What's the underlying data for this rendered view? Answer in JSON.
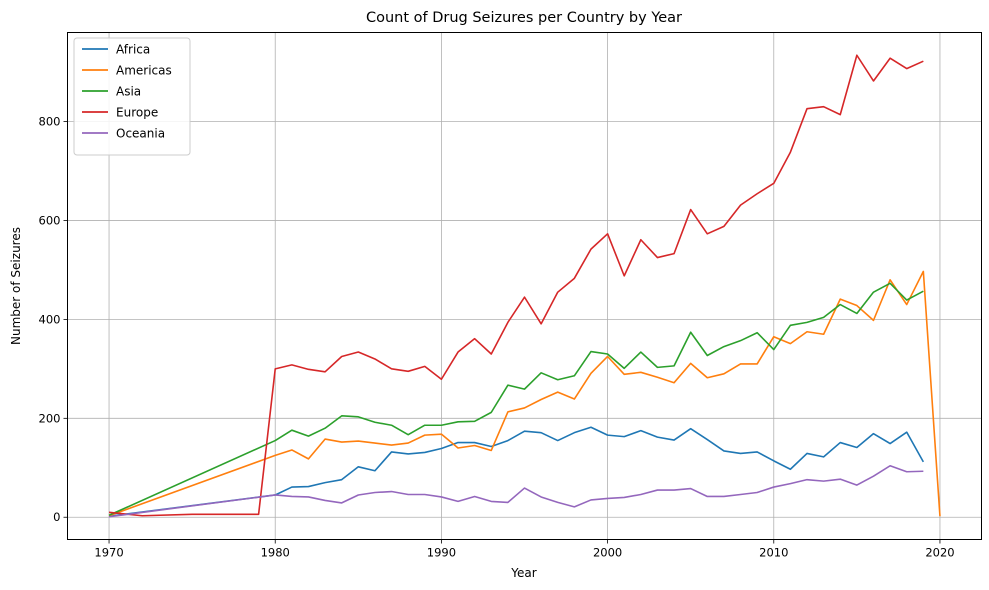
{
  "chart_data": {
    "type": "line",
    "title": "Count of Drug Seizures per Country by Year",
    "xlabel": "Year",
    "ylabel": "Number of Seizures",
    "xlim": [
      1967.5,
      2022.5
    ],
    "ylim": [
      -45,
      980
    ],
    "xticks": [
      1970,
      1980,
      1990,
      2000,
      2010,
      2020
    ],
    "yticks": [
      0,
      200,
      400,
      600,
      800
    ],
    "grid": true,
    "legend_position": "top-left",
    "series": [
      {
        "name": "Africa",
        "color": "#1f77b4",
        "points": [
          [
            1970,
            2
          ],
          [
            1980,
            45
          ],
          [
            1981,
            61
          ],
          [
            1982,
            62
          ],
          [
            1983,
            70
          ],
          [
            1984,
            76
          ],
          [
            1985,
            102
          ],
          [
            1986,
            94
          ],
          [
            1987,
            132
          ],
          [
            1988,
            128
          ],
          [
            1989,
            131
          ],
          [
            1990,
            139
          ],
          [
            1991,
            151
          ],
          [
            1992,
            151
          ],
          [
            1993,
            143
          ],
          [
            1994,
            155
          ],
          [
            1995,
            174
          ],
          [
            1996,
            171
          ],
          [
            1997,
            155
          ],
          [
            1998,
            171
          ],
          [
            1999,
            182
          ],
          [
            2000,
            166
          ],
          [
            2001,
            163
          ],
          [
            2002,
            175
          ],
          [
            2003,
            162
          ],
          [
            2004,
            156
          ],
          [
            2005,
            179
          ],
          [
            2006,
            157
          ],
          [
            2007,
            134
          ],
          [
            2008,
            129
          ],
          [
            2009,
            132
          ],
          [
            2010,
            114
          ],
          [
            2011,
            97
          ],
          [
            2012,
            129
          ],
          [
            2013,
            122
          ],
          [
            2014,
            151
          ],
          [
            2015,
            141
          ],
          [
            2016,
            169
          ],
          [
            2017,
            149
          ],
          [
            2018,
            172
          ],
          [
            2019,
            112
          ]
        ]
      },
      {
        "name": "Americas",
        "color": "#ff7f0e",
        "points": [
          [
            1970,
            3
          ],
          [
            1980,
            125
          ],
          [
            1981,
            136
          ],
          [
            1982,
            118
          ],
          [
            1983,
            158
          ],
          [
            1984,
            152
          ],
          [
            1985,
            154
          ],
          [
            1986,
            150
          ],
          [
            1987,
            146
          ],
          [
            1988,
            150
          ],
          [
            1989,
            166
          ],
          [
            1990,
            168
          ],
          [
            1991,
            140
          ],
          [
            1992,
            145
          ],
          [
            1993,
            135
          ],
          [
            1994,
            213
          ],
          [
            1995,
            221
          ],
          [
            1996,
            238
          ],
          [
            1997,
            253
          ],
          [
            1998,
            239
          ],
          [
            1999,
            291
          ],
          [
            2000,
            325
          ],
          [
            2001,
            289
          ],
          [
            2002,
            293
          ],
          [
            2003,
            283
          ],
          [
            2004,
            272
          ],
          [
            2005,
            311
          ],
          [
            2006,
            282
          ],
          [
            2007,
            290
          ],
          [
            2008,
            310
          ],
          [
            2009,
            310
          ],
          [
            2010,
            365
          ],
          [
            2011,
            351
          ],
          [
            2012,
            375
          ],
          [
            2013,
            370
          ],
          [
            2014,
            441
          ],
          [
            2015,
            428
          ],
          [
            2016,
            398
          ],
          [
            2017,
            480
          ],
          [
            2018,
            430
          ],
          [
            2019,
            497
          ],
          [
            2020,
            2
          ]
        ]
      },
      {
        "name": "Asia",
        "color": "#2ca02c",
        "points": [
          [
            1970,
            4
          ],
          [
            1980,
            155
          ],
          [
            1981,
            176
          ],
          [
            1982,
            164
          ],
          [
            1983,
            180
          ],
          [
            1984,
            205
          ],
          [
            1985,
            203
          ],
          [
            1986,
            192
          ],
          [
            1987,
            186
          ],
          [
            1988,
            167
          ],
          [
            1989,
            186
          ],
          [
            1990,
            186
          ],
          [
            1991,
            193
          ],
          [
            1992,
            194
          ],
          [
            1993,
            212
          ],
          [
            1994,
            267
          ],
          [
            1995,
            259
          ],
          [
            1996,
            292
          ],
          [
            1997,
            278
          ],
          [
            1998,
            286
          ],
          [
            1999,
            335
          ],
          [
            2000,
            330
          ],
          [
            2001,
            301
          ],
          [
            2002,
            334
          ],
          [
            2003,
            303
          ],
          [
            2004,
            306
          ],
          [
            2005,
            374
          ],
          [
            2006,
            327
          ],
          [
            2007,
            345
          ],
          [
            2008,
            357
          ],
          [
            2009,
            373
          ],
          [
            2010,
            339
          ],
          [
            2011,
            388
          ],
          [
            2012,
            394
          ],
          [
            2013,
            404
          ],
          [
            2014,
            430
          ],
          [
            2015,
            412
          ],
          [
            2016,
            455
          ],
          [
            2017,
            473
          ],
          [
            2018,
            439
          ],
          [
            2019,
            457
          ]
        ]
      },
      {
        "name": "Europe",
        "color": "#d62728",
        "points": [
          [
            1970,
            10
          ],
          [
            1972,
            3
          ],
          [
            1975,
            6
          ],
          [
            1979,
            6
          ],
          [
            1980,
            300
          ],
          [
            1981,
            308
          ],
          [
            1982,
            299
          ],
          [
            1983,
            294
          ],
          [
            1984,
            325
          ],
          [
            1985,
            334
          ],
          [
            1986,
            320
          ],
          [
            1987,
            300
          ],
          [
            1988,
            295
          ],
          [
            1989,
            305
          ],
          [
            1990,
            279
          ],
          [
            1991,
            334
          ],
          [
            1992,
            361
          ],
          [
            1993,
            330
          ],
          [
            1994,
            394
          ],
          [
            1995,
            445
          ],
          [
            1996,
            391
          ],
          [
            1997,
            455
          ],
          [
            1998,
            483
          ],
          [
            1999,
            542
          ],
          [
            2000,
            573
          ],
          [
            2001,
            488
          ],
          [
            2002,
            561
          ],
          [
            2003,
            525
          ],
          [
            2004,
            533
          ],
          [
            2005,
            622
          ],
          [
            2006,
            573
          ],
          [
            2007,
            588
          ],
          [
            2008,
            631
          ],
          [
            2009,
            654
          ],
          [
            2010,
            675
          ],
          [
            2011,
            738
          ],
          [
            2012,
            826
          ],
          [
            2013,
            830
          ],
          [
            2014,
            814
          ],
          [
            2015,
            934
          ],
          [
            2016,
            882
          ],
          [
            2017,
            928
          ],
          [
            2018,
            907
          ],
          [
            2019,
            922
          ]
        ]
      },
      {
        "name": "Oceania",
        "color": "#9467bd",
        "points": [
          [
            1970,
            1
          ],
          [
            1980,
            45
          ],
          [
            1981,
            42
          ],
          [
            1982,
            41
          ],
          [
            1983,
            34
          ],
          [
            1984,
            29
          ],
          [
            1985,
            45
          ],
          [
            1986,
            50
          ],
          [
            1987,
            52
          ],
          [
            1988,
            46
          ],
          [
            1989,
            46
          ],
          [
            1990,
            41
          ],
          [
            1991,
            32
          ],
          [
            1992,
            42
          ],
          [
            1993,
            32
          ],
          [
            1994,
            30
          ],
          [
            1995,
            59
          ],
          [
            1996,
            41
          ],
          [
            1997,
            30
          ],
          [
            1998,
            21
          ],
          [
            1999,
            35
          ],
          [
            2000,
            38
          ],
          [
            2001,
            40
          ],
          [
            2002,
            46
          ],
          [
            2003,
            55
          ],
          [
            2004,
            55
          ],
          [
            2005,
            58
          ],
          [
            2006,
            42
          ],
          [
            2007,
            42
          ],
          [
            2008,
            46
          ],
          [
            2009,
            50
          ],
          [
            2010,
            61
          ],
          [
            2011,
            68
          ],
          [
            2012,
            76
          ],
          [
            2013,
            73
          ],
          [
            2014,
            77
          ],
          [
            2015,
            65
          ],
          [
            2016,
            83
          ],
          [
            2017,
            104
          ],
          [
            2018,
            92
          ],
          [
            2019,
            93
          ]
        ]
      }
    ]
  }
}
